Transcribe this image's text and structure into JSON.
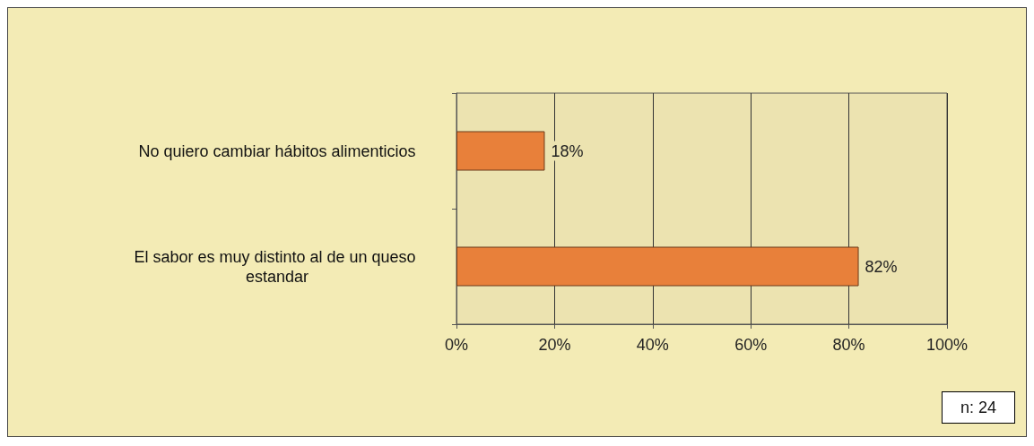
{
  "chart_data": {
    "type": "bar",
    "orientation": "horizontal",
    "categories": [
      "No quiero cambiar hábitos alimenticios",
      "El sabor es muy distinto al de un queso estandar"
    ],
    "values": [
      18,
      82
    ],
    "value_labels": [
      "18%",
      "82%"
    ],
    "color": "#e8803a",
    "xlim": [
      0,
      100
    ],
    "xticks": [
      {
        "value": 0,
        "label": "0%"
      },
      {
        "value": 20,
        "label": "20%"
      },
      {
        "value": 40,
        "label": "40%"
      },
      {
        "value": 60,
        "label": "60%"
      },
      {
        "value": 80,
        "label": "80%"
      },
      {
        "value": 100,
        "label": "100%"
      }
    ],
    "grid": "x",
    "annotations": [
      "n: 24"
    ]
  }
}
